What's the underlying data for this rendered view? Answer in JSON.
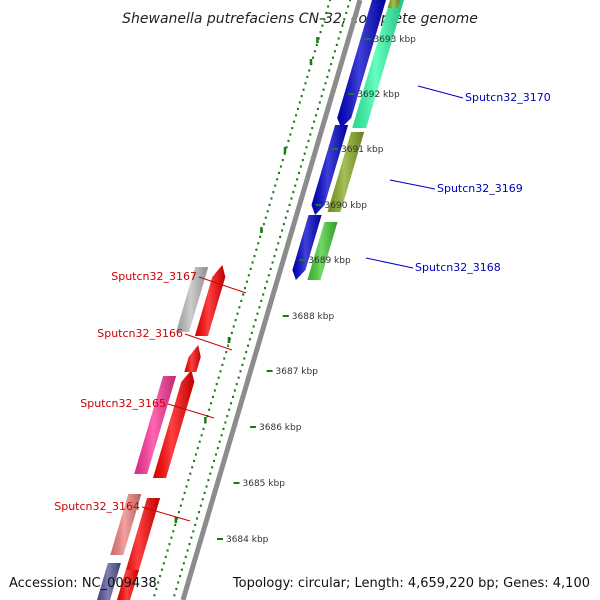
{
  "title": "Shewanella putrefaciens CN-32, complete genome",
  "footer": {
    "accession": "Accession: NC_009438",
    "summary": "Topology: circular; Length: 4,659,220 bp; Genes: 4,100"
  },
  "scale": {
    "unit": "kbp",
    "ticks": [
      "3684 kbp",
      "3685 kbp",
      "3686 kbp",
      "3687 kbp",
      "3688 kbp",
      "3689 kbp",
      "3690 kbp",
      "3691 kbp",
      "3692 kbp",
      "3693 kbp"
    ]
  },
  "genes": [
    {
      "label": "Sputcn32_3164",
      "strand": "reverse",
      "color": "#ff0000"
    },
    {
      "label": "Sputcn32_3165",
      "strand": "reverse",
      "color": "#ff0000"
    },
    {
      "label": "Sputcn32_3166",
      "strand": "reverse",
      "color": "#ff0000"
    },
    {
      "label": "Sputcn32_3167",
      "strand": "reverse",
      "color": "#ff0000"
    },
    {
      "label": "Sputcn32_3168",
      "strand": "forward",
      "color": "#0000cc"
    },
    {
      "label": "Sputcn32_3169",
      "strand": "forward",
      "color": "#0000cc"
    },
    {
      "label": "Sputcn32_3170",
      "strand": "forward",
      "color": "#0000cc"
    }
  ],
  "colors": {
    "backbone": "#8c8c8c",
    "tick": "#1a7a1a",
    "label_reverse": "#cc0000",
    "label_forward": "#0000bb",
    "cog_gray": "#bdbdbd",
    "cog_pink": "#ff3399",
    "cog_lightred": "#f08080",
    "cog_green": "#44cc33",
    "cog_olive": "#88aa22",
    "cog_aqua": "#33ffaa",
    "cog_slate": "#555599"
  }
}
